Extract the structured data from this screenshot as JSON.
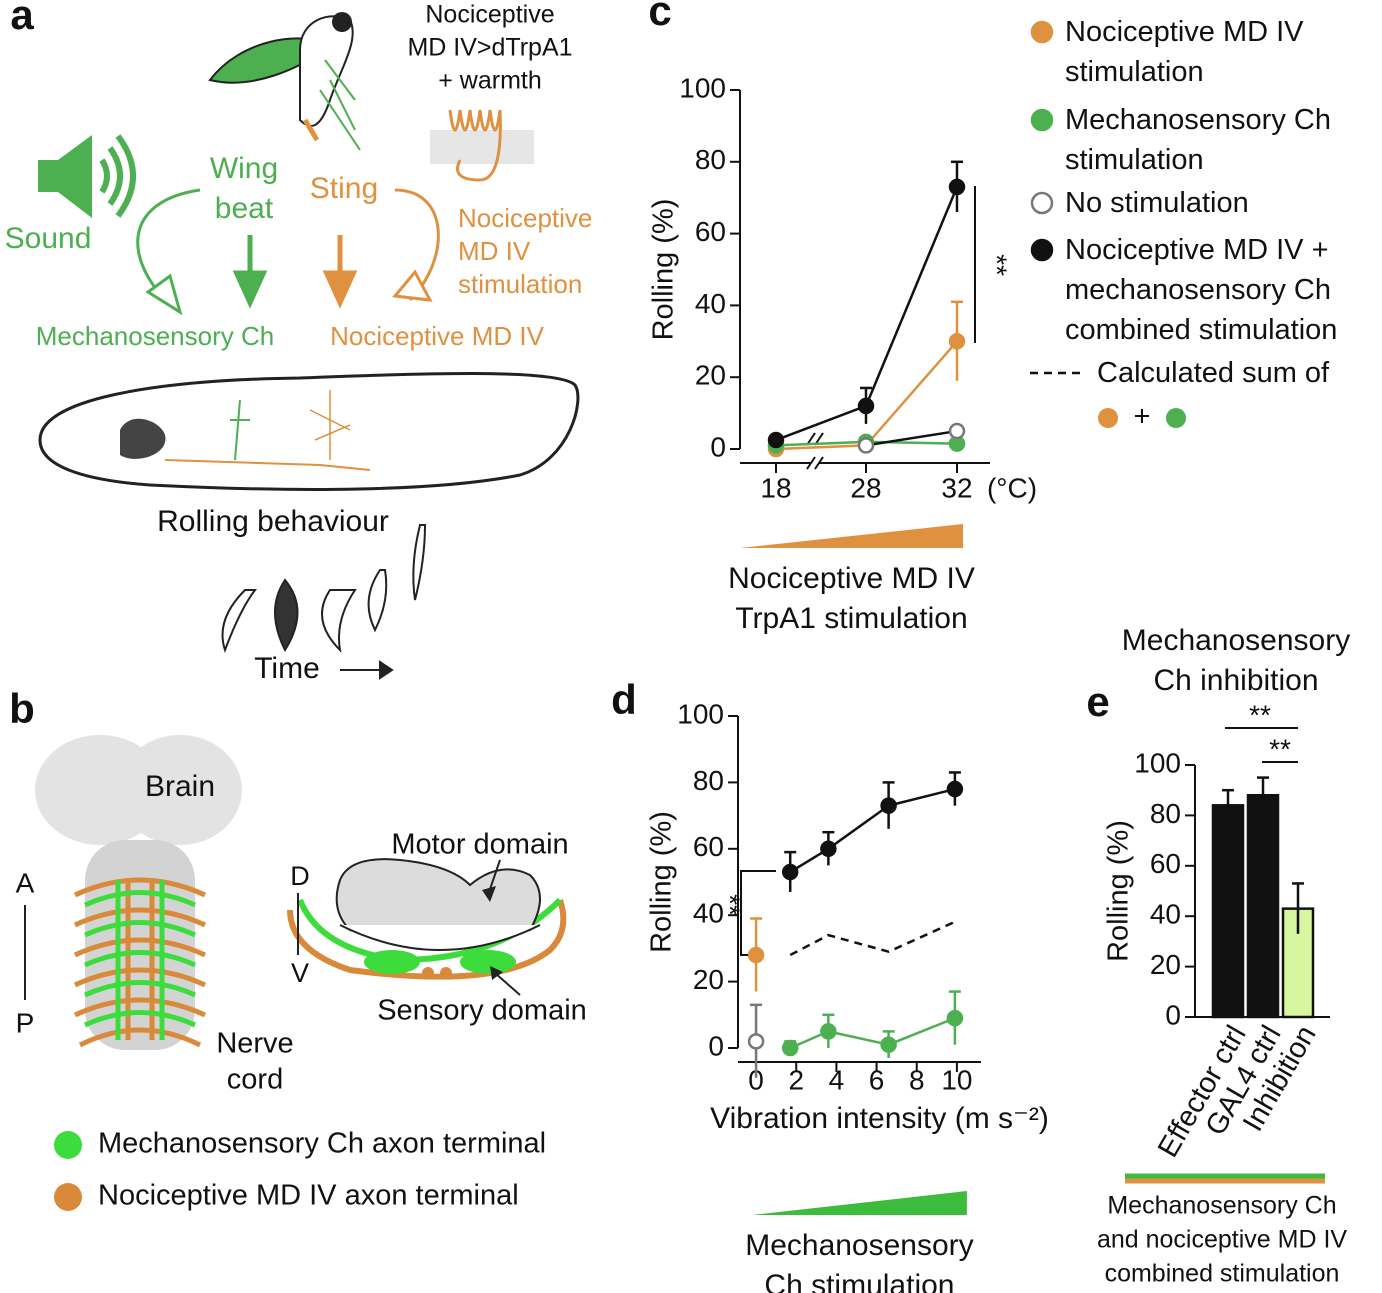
{
  "panel_a": {
    "label": "a",
    "top_label": [
      "Nociceptive",
      "MD IV>dTrpA1",
      "+ warmth"
    ],
    "wing": [
      "Wing",
      "beat"
    ],
    "sound": "Sound",
    "sting": "Sting",
    "stimulation": [
      "Nociceptive",
      "MD IV",
      "stimulation"
    ],
    "mech": "Mechanosensory Ch",
    "noci": "Nociceptive MD IV",
    "rolling": "Rolling behaviour",
    "time": "Time"
  },
  "panel_b": {
    "label": "b",
    "brain": "Brain",
    "a": "A",
    "p": "P",
    "nerve": [
      "Nerve",
      "cord"
    ],
    "d": "D",
    "v": "V",
    "motor": "Motor domain",
    "sensory": "Sensory domain",
    "legend": [
      "Mechanosensory Ch axon terminal",
      "Nociceptive MD IV axon terminal"
    ],
    "legend_colors": [
      "#3ddc3d",
      "#d9893a"
    ]
  },
  "chart_data": [
    {
      "type": "line",
      "panel_label": "c",
      "ylabel": "Rolling (%)",
      "categories": [
        "18",
        "28",
        "32"
      ],
      "x_unit": "(°C)",
      "axis_break": true,
      "ylim": [
        0,
        100
      ],
      "yticks": [
        0,
        20,
        40,
        60,
        80,
        100
      ],
      "stimulus": [
        "Nociceptive MD IV",
        "TrpA1 stimulation"
      ],
      "stimulus_color": "#e0913f",
      "annotation": "**",
      "series": [
        {
          "name": "Nociceptive MD IV stimulation",
          "color": "#e0913f",
          "values": [
            0,
            1,
            30
          ],
          "errors": [
            null,
            null,
            11
          ]
        },
        {
          "name": "Mechanosensory Ch stimulation",
          "color": "#4caf50",
          "values": [
            1,
            2,
            1.5
          ],
          "errors": [
            null,
            null,
            null
          ]
        },
        {
          "name": "No stimulation",
          "color": "#777777",
          "marker": "open",
          "line_color": "#111111",
          "values": [
            null,
            1,
            5
          ],
          "errors": [
            null,
            null,
            null
          ]
        },
        {
          "name": "Nociceptive MD IV + mechanosensory Ch combined stimulation",
          "color": "#111111",
          "values": [
            2.5,
            12,
            73
          ],
          "errors": [
            null,
            5,
            7
          ]
        }
      ]
    },
    {
      "type": "line",
      "panel_label": "d",
      "ylabel": "Rolling (%)",
      "xlabel": "Vibration intensity (m s⁻²)",
      "xlim": [
        -0.9,
        11.2
      ],
      "xticks": [
        0,
        2,
        4,
        6,
        8,
        10
      ],
      "ylim": [
        0,
        100
      ],
      "yticks": [
        0,
        20,
        40,
        60,
        80,
        100
      ],
      "stimulus": [
        "Mechanosensory",
        "Ch stimulation"
      ],
      "stimulus_color": "#3dbb3d",
      "annotation": "**",
      "legend_note": "+",
      "series": [
        {
          "color": "#e0913f",
          "x": [
            0
          ],
          "values": [
            28
          ],
          "errors": [
            11
          ]
        },
        {
          "color": "#777777",
          "marker": "open",
          "x": [
            0
          ],
          "values": [
            2
          ],
          "errors": [
            11
          ]
        },
        {
          "color": "#111111",
          "x": [
            1.7,
            3.6,
            6.6,
            9.9
          ],
          "values": [
            53,
            60,
            73,
            78
          ],
          "errors": [
            6,
            5,
            7,
            5
          ]
        },
        {
          "color": "#4caf50",
          "x": [
            1.7,
            3.6,
            6.6,
            9.9
          ],
          "values": [
            0,
            5,
            1,
            9
          ],
          "errors": [
            2,
            5,
            4,
            8
          ]
        },
        {
          "name": "Calculated sum of",
          "color": "#111111",
          "style": "dashed",
          "x": [
            1.7,
            3.6,
            6.6,
            9.9
          ],
          "values": [
            28,
            34,
            29,
            38
          ]
        }
      ]
    },
    {
      "type": "bar",
      "panel_label": "e",
      "title": [
        "Mechanosensory",
        "Ch  inhibition"
      ],
      "ylabel": "Rolling (%)",
      "categories": [
        "Effector ctrl",
        "GAL4 ctrl",
        "Inhibition"
      ],
      "values": [
        84,
        88,
        43
      ],
      "errors": [
        6,
        7,
        10
      ],
      "colors": [
        "#111111",
        "#111111",
        "#d8f5a0"
      ],
      "ylim": [
        0,
        100
      ],
      "yticks": [
        0,
        20,
        40,
        60,
        80,
        100
      ],
      "annotations": [
        "**",
        "**"
      ],
      "stimulus": [
        "Mechanosensory Ch",
        "and nociceptive MD IV",
        "combined stimulation"
      ],
      "stimulus_colors": [
        "#3dbb3d",
        "#e0913f"
      ]
    }
  ]
}
